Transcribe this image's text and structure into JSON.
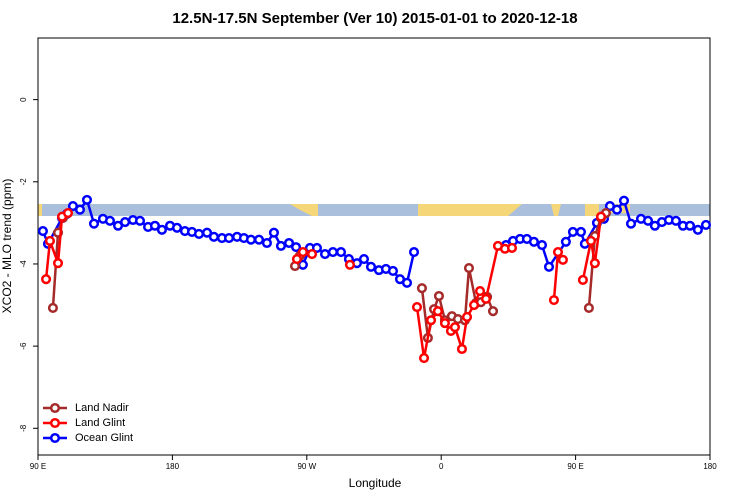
{
  "chart_data": {
    "type": "line",
    "title": "12.5N-17.5N September (Ver 10)   2015-01-01 to 2020-12-18",
    "xlabel": "Longitude",
    "ylabel": "XCO2 - MLO trend (ppm)",
    "xlim": [
      90,
      540
    ],
    "ylim": [
      -8.65,
      1.5
    ],
    "xticks": [
      {
        "value": 90,
        "label": "90 E"
      },
      {
        "value": 180,
        "label": "180"
      },
      {
        "value": 270,
        "label": "90 W"
      },
      {
        "value": 360,
        "label": "0"
      },
      {
        "value": 450,
        "label": "90 E"
      },
      {
        "value": 540,
        "label": "180"
      }
    ],
    "yticks": [
      0,
      -2,
      -4,
      -6,
      -8
    ],
    "legend": "lower left",
    "series": [
      {
        "name": "Ocean Glint",
        "color": "#0000ff",
        "x": [
          93.3,
          96.7,
          106.1,
          109.4,
          113.4,
          118.1,
          122.8,
          127.5,
          133.5,
          138.2,
          143.6,
          148.3,
          153.6,
          158.3,
          163.7,
          168.3,
          173.0,
          178.4,
          183.1,
          188.4,
          193.1,
          197.8,
          203.2,
          207.8,
          213.2,
          217.9,
          223.3,
          227.9,
          232.6,
          238.0,
          243.3,
          248.0,
          252.7,
          258.1,
          262.8,
          267.4,
          272.1,
          276.8,
          282.2,
          287.5,
          292.9,
          298.2,
          303.6,
          308.3,
          313.0,
          318.3,
          323.0,
          327.7,
          332.4,
          337.1,
          341.8,
          null,
          403.4,
          408.1,
          412.8,
          417.4,
          422.1,
          427.5,
          432.2,
          443.5,
          448.2,
          453.6,
          456.2,
          464.3,
          469.0,
          473.0,
          477.7,
          482.4,
          487.1,
          493.8,
          498.5,
          503.1,
          507.8,
          512.5,
          517.2,
          521.9,
          526.6,
          531.9,
          537.3
        ],
        "values": [
          -3.2,
          -3.51,
          -2.88,
          -2.78,
          -2.59,
          -2.68,
          -2.44,
          -3.02,
          -2.9,
          -2.95,
          -3.07,
          -2.98,
          -2.93,
          -2.95,
          -3.1,
          -3.07,
          -3.17,
          -3.07,
          -3.12,
          -3.2,
          -3.22,
          -3.27,
          -3.24,
          -3.34,
          -3.37,
          -3.37,
          -3.34,
          -3.37,
          -3.41,
          -3.41,
          -3.49,
          -3.24,
          -3.56,
          -3.49,
          -3.59,
          -4.02,
          -3.61,
          -3.61,
          -3.76,
          -3.71,
          -3.71,
          -3.88,
          -3.98,
          -3.88,
          -4.07,
          -4.15,
          -4.12,
          -4.17,
          -4.37,
          -4.46,
          -3.71,
          null,
          -3.54,
          -3.44,
          -3.39,
          -3.39,
          -3.46,
          -3.54,
          -4.07,
          -3.46,
          -3.22,
          -3.22,
          -3.51,
          -3.0,
          -2.9,
          -2.59,
          -2.68,
          -2.46,
          -3.02,
          -2.9,
          -2.95,
          -3.07,
          -2.98,
          -2.93,
          -2.95,
          -3.07,
          -3.07,
          -3.17,
          -3.05
        ]
      },
      {
        "name": "Land Nadir",
        "color": "#a52a2a",
        "x": [
          100.0,
          103.4,
          106.7,
          null,
          262.1,
          265.4,
          null,
          347.1,
          351.1,
          355.2,
          358.5,
          362.5,
          367.2,
          371.2,
          375.9,
          378.6,
          383.3,
          386.6,
          390.7,
          394.7,
          null,
          458.9,
          462.9,
          467.0,
          470.3
        ],
        "values": [
          -5.07,
          -3.24,
          -2.88,
          null,
          -4.05,
          -3.8,
          null,
          -4.59,
          -5.8,
          -5.1,
          -4.78,
          -5.37,
          -5.27,
          -5.34,
          -5.37,
          -4.1,
          -4.95,
          -4.93,
          -4.8,
          -5.15,
          null,
          -5.07,
          -3.32,
          -2.88,
          -2.76
        ]
      },
      {
        "name": "Land Glint",
        "color": "#ff0000",
        "x": [
          95.4,
          98.0,
          103.4,
          106.1,
          110.1,
          null,
          263.4,
          267.4,
          273.5,
          null,
          298.9,
          null,
          343.8,
          348.5,
          353.2,
          357.8,
          362.5,
          366.5,
          369.2,
          373.9,
          377.3,
          382.0,
          386.0,
          390.0,
          398.0,
          402.7,
          407.4,
          null,
          435.5,
          438.2,
          441.5,
          null,
          454.9,
          460.3,
          462.9,
          467.0
        ],
        "values": [
          -4.37,
          -3.44,
          -3.98,
          -2.85,
          -2.76,
          null,
          -3.88,
          -3.71,
          -3.76,
          null,
          -4.02,
          null,
          -5.05,
          -6.29,
          -5.37,
          -5.15,
          -5.44,
          -5.63,
          -5.54,
          -6.07,
          -5.29,
          -5.0,
          -4.66,
          -4.85,
          -3.56,
          -3.63,
          -3.61,
          null,
          -4.88,
          -3.71,
          -3.9,
          null,
          -4.39,
          -3.44,
          -3.98,
          -2.85
        ]
      }
    ]
  }
}
